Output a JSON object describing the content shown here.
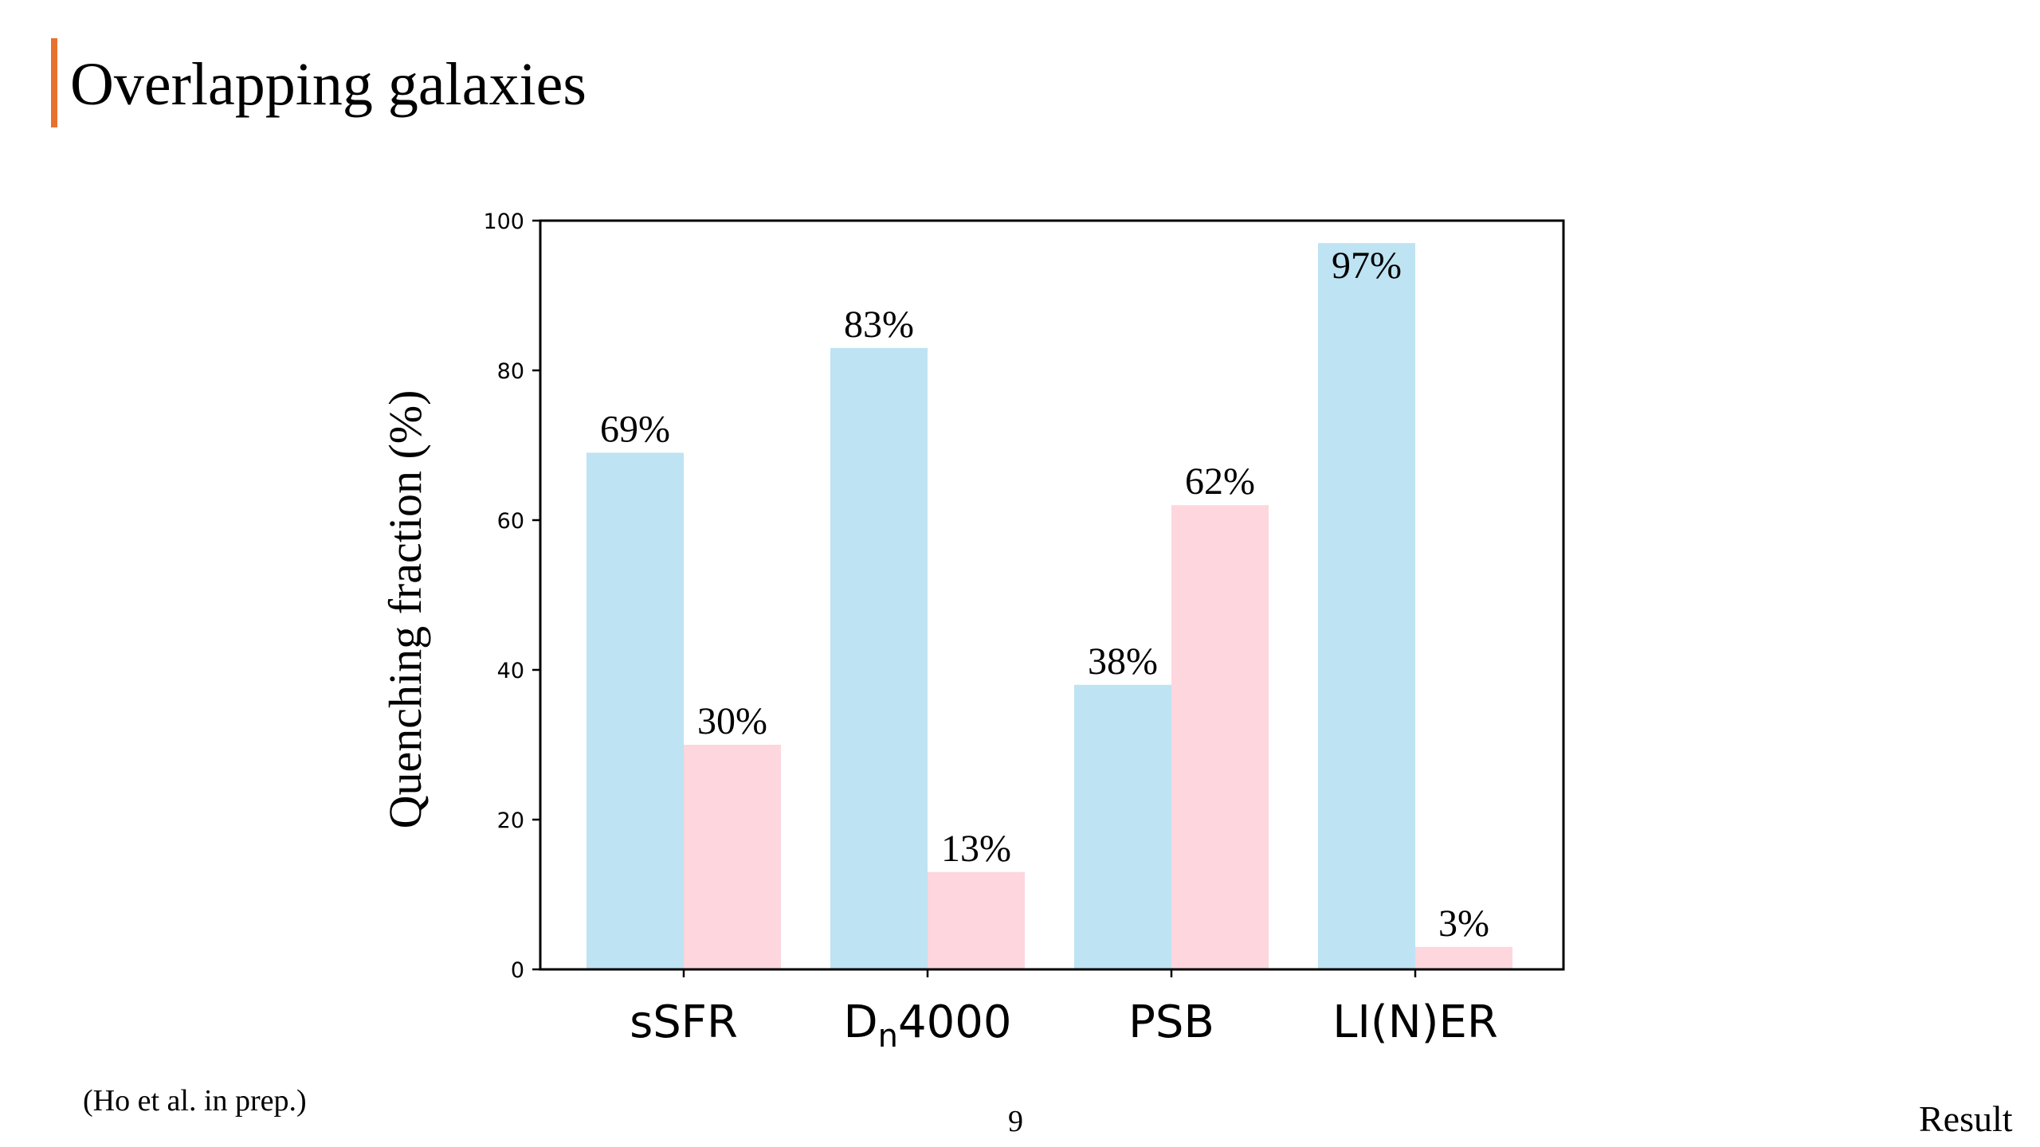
{
  "slide": {
    "title": "Overlapping galaxies",
    "citation": "(Ho et al. in prep.)",
    "page_number": "9",
    "section": "Result",
    "accent_color": "#E8712E"
  },
  "chart_data": {
    "type": "bar",
    "categories": [
      "sSFR",
      "Dn4000",
      "PSB",
      "LI(N)ER"
    ],
    "category_display": [
      {
        "main": "sSFR",
        "sub": "",
        "rest": ""
      },
      {
        "main": "D",
        "sub": "n",
        "rest": "4000"
      },
      {
        "main": "PSB",
        "sub": "",
        "rest": ""
      },
      {
        "main": "LI(N)ER",
        "sub": "",
        "rest": ""
      }
    ],
    "series": [
      {
        "values": [
          69,
          83,
          38,
          97
        ],
        "labels": [
          "69%",
          "83%",
          "38%",
          "97%"
        ],
        "color": "#BEE3F3"
      },
      {
        "values": [
          30,
          13,
          62,
          3
        ],
        "labels": [
          "30%",
          "13%",
          "62%",
          "3%"
        ],
        "color": "#FDD6DE"
      }
    ],
    "ylabel": "Quenching fraction (%)",
    "xlabel": "",
    "ylim": [
      0,
      100
    ],
    "yticks": [
      0,
      20,
      40,
      60,
      80,
      100
    ],
    "grid": false,
    "legend": "none"
  }
}
